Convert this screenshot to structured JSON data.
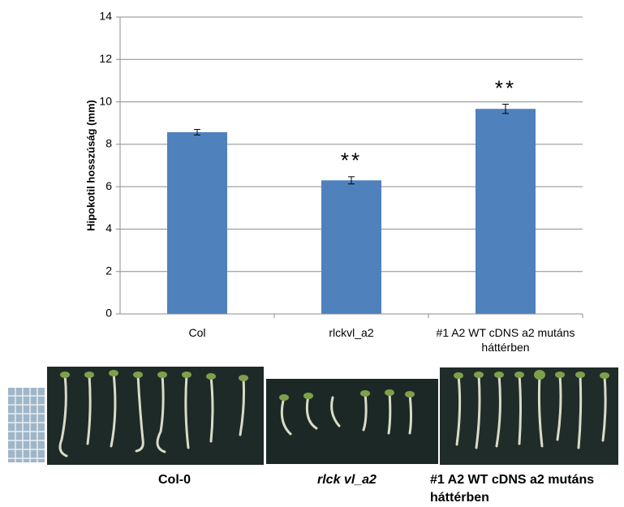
{
  "chart_data": {
    "type": "bar",
    "y_label": "Hipokotil hosszúság (mm)",
    "categories": [
      "Col",
      "rlckvl_a2",
      "#1 A2 WT cDNS a2 mutáns háttérben"
    ],
    "values": [
      8.57,
      6.3,
      9.67
    ],
    "errors": [
      0.13,
      0.17,
      0.22
    ],
    "significance": [
      null,
      "**",
      "**"
    ],
    "color": "#4f81bd",
    "ylim": [
      0,
      14
    ],
    "yticks": [
      0,
      2,
      4,
      6,
      8,
      10,
      12,
      14
    ],
    "grid": true
  },
  "photos": {
    "captions": [
      "Col-0",
      "rlck vl_a2",
      "#1 A2 WT cDNS a2 mutáns háttérben"
    ]
  }
}
